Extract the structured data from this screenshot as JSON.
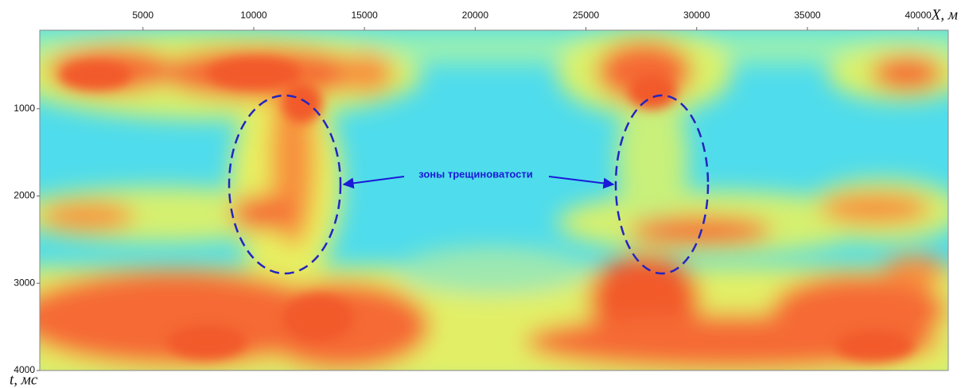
{
  "chart_data": {
    "type": "seismic-section",
    "x_label": "X, м",
    "y_label": "t, мс",
    "annotation": "зоны трещиноватости",
    "xlim": [
      340,
      41360
    ],
    "xticks": [
      5000,
      10000,
      15000,
      20000,
      25000,
      30000,
      35000,
      40000
    ],
    "ylim": [
      100,
      4000
    ],
    "yticks": [
      1000,
      2000,
      3000,
      4000
    ],
    "y_inverted": true,
    "x_axis_position": "top"
  }
}
